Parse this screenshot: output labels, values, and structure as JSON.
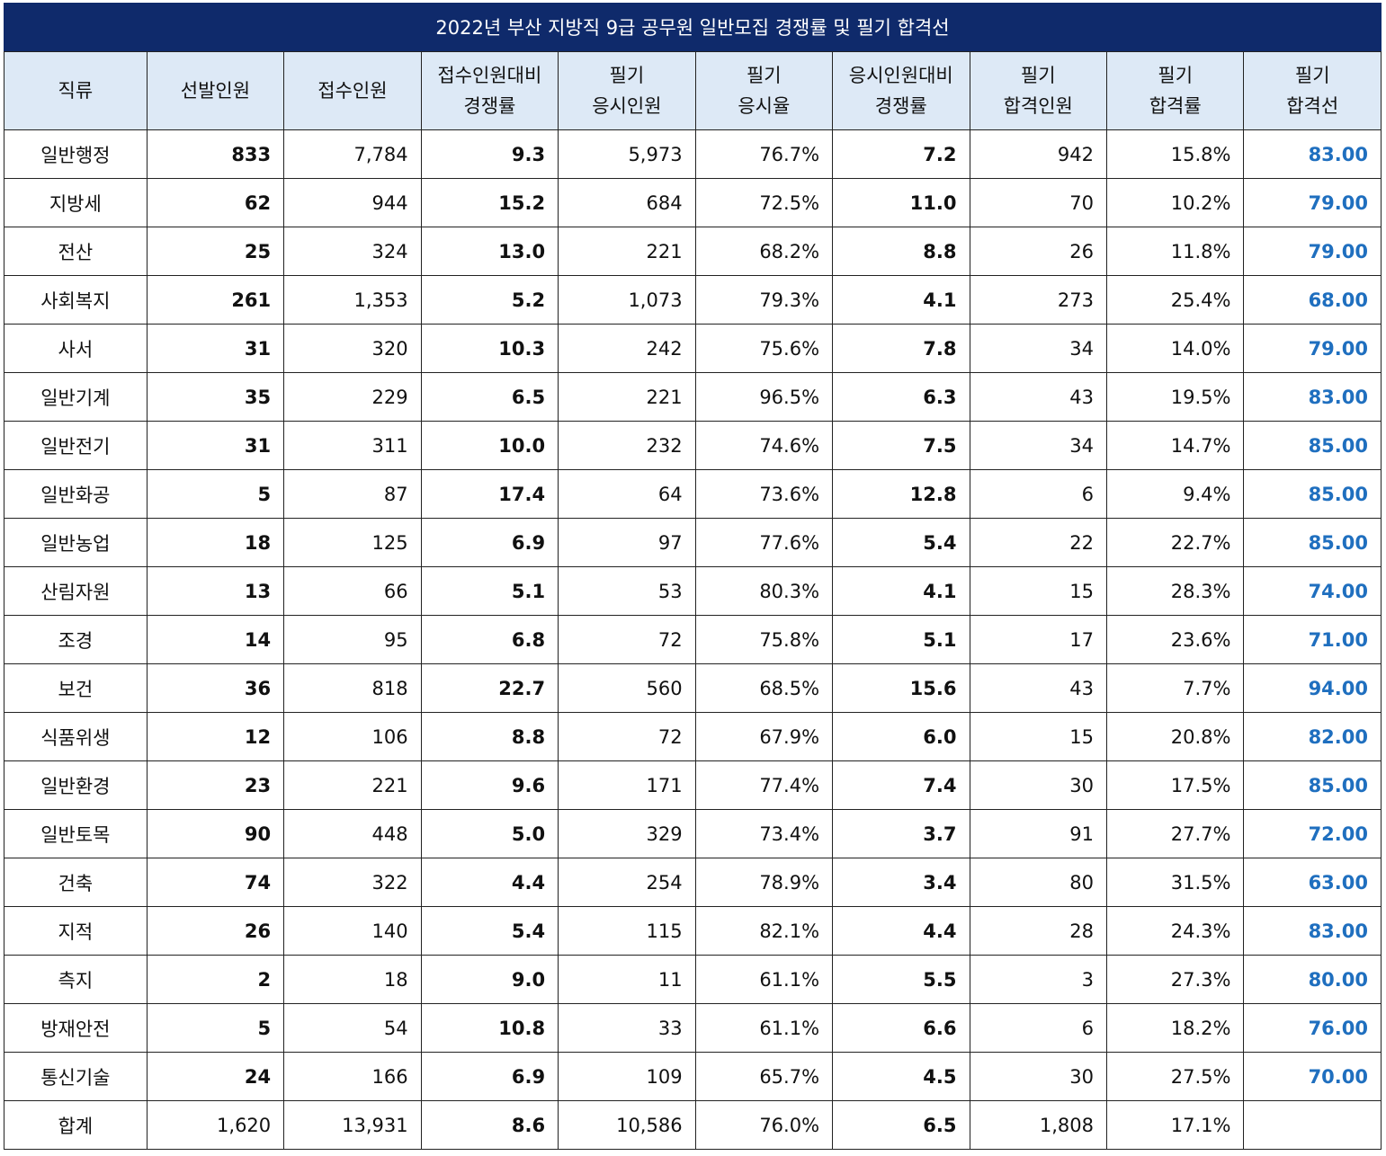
{
  "title": "2022년 부산 지방직 9급 공무원 일반모집 경쟁률 및 필기 합격선",
  "colors": {
    "title_bg": "#0f2a6b",
    "header_bg": "#dde9f6",
    "cutoff_text": "#1f6fbf"
  },
  "headers": [
    [
      "직류"
    ],
    [
      "선발인원"
    ],
    [
      "접수인원"
    ],
    [
      "접수인원대비",
      "경쟁률"
    ],
    [
      "필기",
      "응시인원"
    ],
    [
      "필기",
      "응시율"
    ],
    [
      "응시인원대비",
      "경쟁률"
    ],
    [
      "필기",
      "합격인원"
    ],
    [
      "필기",
      "합격률"
    ],
    [
      "필기",
      "합격선"
    ]
  ],
  "rows": [
    [
      "일반행정",
      "833",
      "7,784",
      "9.3",
      "5,973",
      "76.7%",
      "7.2",
      "942",
      "15.8%",
      "83.00"
    ],
    [
      "지방세",
      "62",
      "944",
      "15.2",
      "684",
      "72.5%",
      "11.0",
      "70",
      "10.2%",
      "79.00"
    ],
    [
      "전산",
      "25",
      "324",
      "13.0",
      "221",
      "68.2%",
      "8.8",
      "26",
      "11.8%",
      "79.00"
    ],
    [
      "사회복지",
      "261",
      "1,353",
      "5.2",
      "1,073",
      "79.3%",
      "4.1",
      "273",
      "25.4%",
      "68.00"
    ],
    [
      "사서",
      "31",
      "320",
      "10.3",
      "242",
      "75.6%",
      "7.8",
      "34",
      "14.0%",
      "79.00"
    ],
    [
      "일반기계",
      "35",
      "229",
      "6.5",
      "221",
      "96.5%",
      "6.3",
      "43",
      "19.5%",
      "83.00"
    ],
    [
      "일반전기",
      "31",
      "311",
      "10.0",
      "232",
      "74.6%",
      "7.5",
      "34",
      "14.7%",
      "85.00"
    ],
    [
      "일반화공",
      "5",
      "87",
      "17.4",
      "64",
      "73.6%",
      "12.8",
      "6",
      "9.4%",
      "85.00"
    ],
    [
      "일반농업",
      "18",
      "125",
      "6.9",
      "97",
      "77.6%",
      "5.4",
      "22",
      "22.7%",
      "85.00"
    ],
    [
      "산림자원",
      "13",
      "66",
      "5.1",
      "53",
      "80.3%",
      "4.1",
      "15",
      "28.3%",
      "74.00"
    ],
    [
      "조경",
      "14",
      "95",
      "6.8",
      "72",
      "75.8%",
      "5.1",
      "17",
      "23.6%",
      "71.00"
    ],
    [
      "보건",
      "36",
      "818",
      "22.7",
      "560",
      "68.5%",
      "15.6",
      "43",
      "7.7%",
      "94.00"
    ],
    [
      "식품위생",
      "12",
      "106",
      "8.8",
      "72",
      "67.9%",
      "6.0",
      "15",
      "20.8%",
      "82.00"
    ],
    [
      "일반환경",
      "23",
      "221",
      "9.6",
      "171",
      "77.4%",
      "7.4",
      "30",
      "17.5%",
      "85.00"
    ],
    [
      "일반토목",
      "90",
      "448",
      "5.0",
      "329",
      "73.4%",
      "3.7",
      "91",
      "27.7%",
      "72.00"
    ],
    [
      "건축",
      "74",
      "322",
      "4.4",
      "254",
      "78.9%",
      "3.4",
      "80",
      "31.5%",
      "63.00"
    ],
    [
      "지적",
      "26",
      "140",
      "5.4",
      "115",
      "82.1%",
      "4.4",
      "28",
      "24.3%",
      "83.00"
    ],
    [
      "측지",
      "2",
      "18",
      "9.0",
      "11",
      "61.1%",
      "5.5",
      "3",
      "27.3%",
      "80.00"
    ],
    [
      "방재안전",
      "5",
      "54",
      "10.8",
      "33",
      "61.1%",
      "6.6",
      "6",
      "18.2%",
      "76.00"
    ],
    [
      "통신기술",
      "24",
      "166",
      "6.9",
      "109",
      "65.7%",
      "4.5",
      "30",
      "27.5%",
      "70.00"
    ]
  ],
  "total": [
    "합계",
    "1,620",
    "13,931",
    "8.6",
    "10,586",
    "76.0%",
    "6.5",
    "1,808",
    "17.1%",
    ""
  ]
}
